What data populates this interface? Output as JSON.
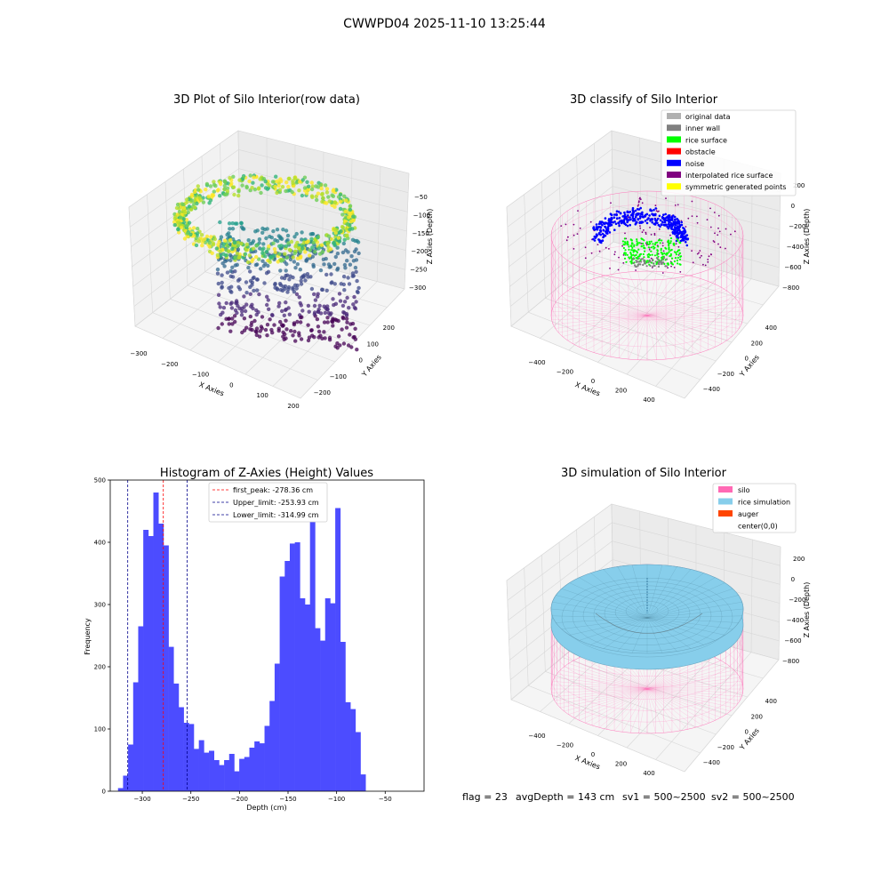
{
  "figure": {
    "suptitle": "CWWPD04 2025-11-10 13:25:44",
    "footer": {
      "flag": "flag = 23",
      "avg": "avgDepth = 143 cm",
      "sv1": "sv1 = 500~2500",
      "sv2": "sv2 = 500~2500"
    }
  },
  "chart_data": [
    {
      "type": "scatter",
      "projection": "3d",
      "title": "3D Plot of Silo Interior(row data)",
      "xlabel": "X Axies",
      "ylabel": "Y Axies",
      "zlabel": "Z Axies (Depth)",
      "x_ticks": [
        "−300",
        "−200",
        "−100",
        "0",
        "100",
        "200"
      ],
      "y_ticks": [
        "200",
        "100",
        "0",
        "−100",
        "−200"
      ],
      "z_ticks": [
        "−50",
        "−100",
        "−150",
        "−200",
        "−250",
        "−300"
      ],
      "colormap": "viridis",
      "xlim": [
        -300,
        200
      ],
      "ylim": [
        -250,
        250
      ],
      "zlim": [
        -330,
        -20
      ]
    },
    {
      "type": "scatter",
      "projection": "3d",
      "title": "3D classify of Silo Interior",
      "xlabel": "X Axies",
      "ylabel": "Y Axies",
      "zlabel": "Z Axies (Depth)",
      "x_ticks": [
        "−400",
        "−200",
        "0",
        "200",
        "400"
      ],
      "y_ticks": [
        "400",
        "200",
        "0",
        "−200",
        "−400"
      ],
      "z_ticks": [
        "200",
        "0",
        "−200",
        "−400",
        "−600",
        "−800"
      ],
      "legend": [
        {
          "label": "original data",
          "color": "#b0b0b0"
        },
        {
          "label": "inner wall",
          "color": "#808080"
        },
        {
          "label": "rice surface",
          "color": "#00ff00"
        },
        {
          "label": "obstacle",
          "color": "#ff0000"
        },
        {
          "label": "noise",
          "color": "#0000ff"
        },
        {
          "label": "interpolated rice surface",
          "color": "#800080"
        },
        {
          "label": "symmetric generated points",
          "color": "#ffff00"
        }
      ],
      "legend_position": "top-right"
    },
    {
      "type": "bar",
      "title": "Histogram of Z-Axies (Height) Values",
      "xlabel": "Depth (cm)",
      "ylabel": "Frequency",
      "xlim": [
        -333,
        -10
      ],
      "ylim": [
        0,
        500
      ],
      "x_ticks": [
        -300,
        -250,
        -200,
        -150,
        -100,
        -50
      ],
      "y_ticks": [
        0,
        100,
        200,
        300,
        400,
        500
      ],
      "bin_start": -325,
      "bin_width": 5.2,
      "values": [
        5,
        25,
        75,
        175,
        265,
        420,
        410,
        480,
        430,
        395,
        232,
        173,
        135,
        110,
        108,
        68,
        82,
        62,
        65,
        50,
        42,
        50,
        60,
        32,
        52,
        55,
        70,
        80,
        77,
        105,
        145,
        205,
        345,
        370,
        398,
        400,
        310,
        300,
        470,
        262,
        242,
        310,
        302,
        455,
        240,
        143,
        132,
        95,
        27
      ],
      "bar_color": "#4c4cff",
      "vlines": [
        {
          "label": "first_peak: -278.36 cm",
          "value": -278.36,
          "color": "#ff0000"
        },
        {
          "label": "Upper_limit: -253.93 cm",
          "value": -253.93,
          "color": "#00008b"
        },
        {
          "label": "Lower_limit: -314.99 cm",
          "value": -314.99,
          "color": "#00008b"
        }
      ],
      "legend_position": "top-center"
    },
    {
      "type": "surface",
      "projection": "3d",
      "title": "3D simulation of Silo Interior",
      "xlabel": "X Axies",
      "ylabel": "Y Axies",
      "zlabel": "Z Axies (Depth)",
      "x_ticks": [
        "−400",
        "−200",
        "0",
        "200",
        "400"
      ],
      "y_ticks": [
        "400",
        "200",
        "0",
        "−200",
        "−400"
      ],
      "z_ticks": [
        "200",
        "0",
        "−200",
        "−400",
        "−600",
        "−800"
      ],
      "legend": [
        {
          "label": "silo",
          "color": "#ff69b4"
        },
        {
          "label": "rice simulation",
          "color": "#87ceeb"
        },
        {
          "label": "auger",
          "color": "#ff4500"
        },
        {
          "label": "center(0,0)",
          "color": "#ffffff"
        }
      ],
      "legend_position": "top-right"
    }
  ]
}
